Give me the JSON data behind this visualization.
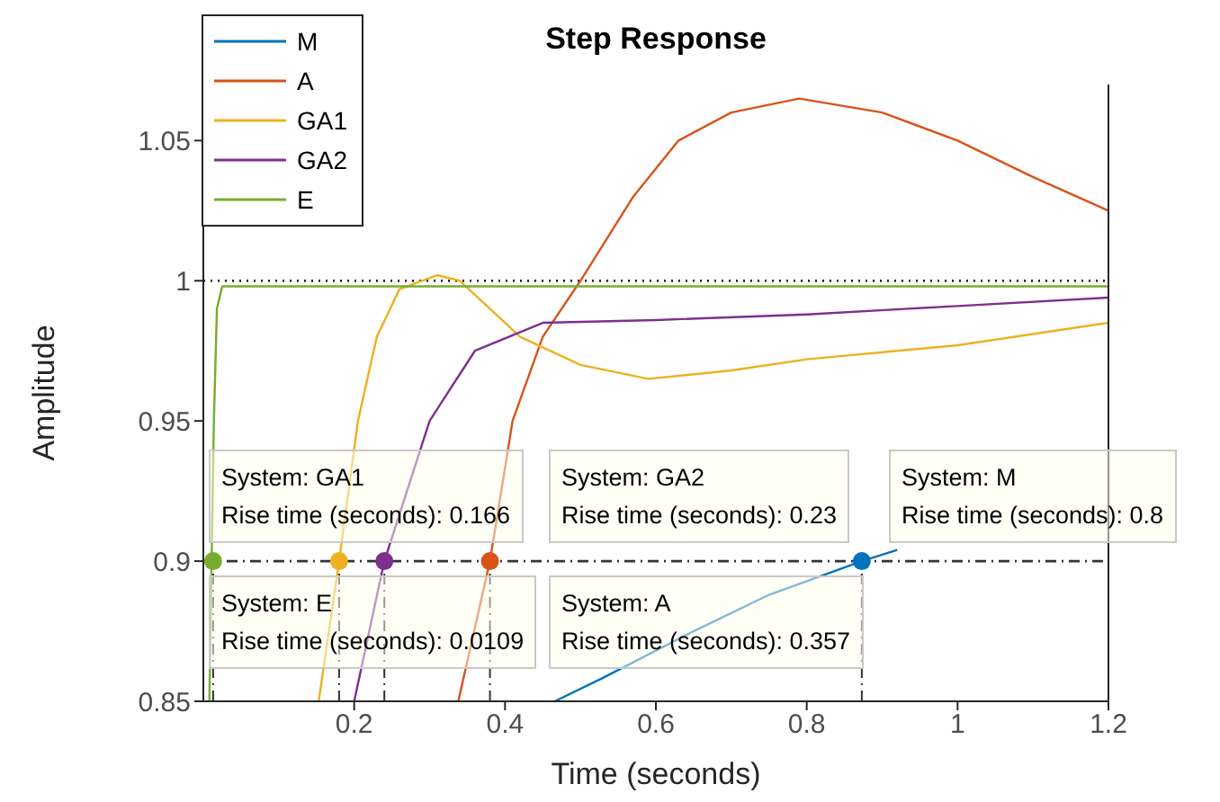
{
  "chart_data": {
    "type": "line",
    "title": "Step Response",
    "xlabel": "Time (seconds)",
    "ylabel": "Amplitude",
    "xlim": [
      0,
      1.2
    ],
    "ylim": [
      0.85,
      1.07
    ],
    "xticks": [
      0.2,
      0.4,
      0.6,
      0.8,
      1,
      1.2
    ],
    "yticks": [
      0.85,
      0.9,
      0.95,
      1,
      1.05
    ],
    "grid": false,
    "legend": "top left",
    "line_style": "solid",
    "series": [
      {
        "name": "M",
        "color": "#0072bd",
        "x": [
          0.466,
          0.527,
          0.65,
          0.75,
          0.873,
          0.92
        ],
        "values": [
          0.85,
          0.858,
          0.875,
          0.888,
          0.9,
          0.904
        ]
      },
      {
        "name": "A",
        "color": "#d95319",
        "x": [
          0.338,
          0.38,
          0.41,
          0.45,
          0.5,
          0.57,
          0.63,
          0.7,
          0.79,
          0.9,
          1,
          1.1,
          1.2
        ],
        "values": [
          0.85,
          0.9,
          0.95,
          0.98,
          1,
          1.03,
          1.05,
          1.06,
          1.065,
          1.06,
          1.05,
          1.037,
          1.025
        ]
      },
      {
        "name": "GA1",
        "color": "#edb120",
        "x": [
          0.153,
          0.18,
          0.205,
          0.23,
          0.26,
          0.31,
          0.34,
          0.38,
          0.42,
          0.5,
          0.59,
          0.7,
          0.8,
          1,
          1.2
        ],
        "values": [
          0.85,
          0.9,
          0.95,
          0.98,
          0.997,
          1.002,
          1,
          0.99,
          0.98,
          0.97,
          0.965,
          0.968,
          0.972,
          0.977,
          0.985
        ]
      },
      {
        "name": "GA2",
        "color": "#7e2f8e",
        "x": [
          0.2,
          0.24,
          0.3,
          0.36,
          0.45,
          0.6,
          0.8,
          1,
          1.2
        ],
        "values": [
          0.85,
          0.9,
          0.95,
          0.975,
          0.985,
          0.986,
          0.988,
          0.991,
          0.994
        ]
      },
      {
        "name": "E",
        "color": "#77ac30",
        "x": [
          0.008,
          0.011,
          0.014,
          0.018,
          0.025,
          1.2
        ],
        "values": [
          0.85,
          0.9,
          0.95,
          0.99,
          0.998,
          0.998
        ]
      },
      {
        "type": "scatter",
        "marker": "circle",
        "x": [
          0.013,
          0.18,
          0.24,
          0.38,
          0.873
        ],
        "values": [
          0.9,
          0.9,
          0.9,
          0.9,
          0.9
        ],
        "colors": [
          "#77ac30",
          "#edb120",
          "#7e2f8e",
          "#d95319",
          "#0072bd"
        ]
      }
    ],
    "ref_lines": [
      {
        "axis": "y",
        "value": 1,
        "color": "#000000",
        "line_style": "dotted"
      },
      {
        "axis": "y",
        "value": 0.9,
        "color": "#333333",
        "line_style": "dashed"
      },
      {
        "axis": "x",
        "value": 0.013,
        "color": "#333333",
        "line_style": "dashed"
      },
      {
        "axis": "x",
        "value": 0.18,
        "color": "#333333",
        "line_style": "dashed"
      },
      {
        "axis": "x",
        "value": 0.24,
        "color": "#333333",
        "line_style": "dashed"
      },
      {
        "axis": "x",
        "value": 0.38,
        "color": "#333333",
        "line_style": "dashed"
      },
      {
        "axis": "x",
        "value": 0.873,
        "color": "#333333",
        "line_style": "dashed"
      }
    ],
    "annotations": [
      "System: GA1\nRise time (seconds): 0.166",
      "System: GA2\nRise time (seconds): 0.23",
      "System: M\nRise time (seconds): 0.8",
      "System: E\nRise time (seconds): 0.0109",
      "System: A\nRise time (seconds): 0.357"
    ]
  }
}
